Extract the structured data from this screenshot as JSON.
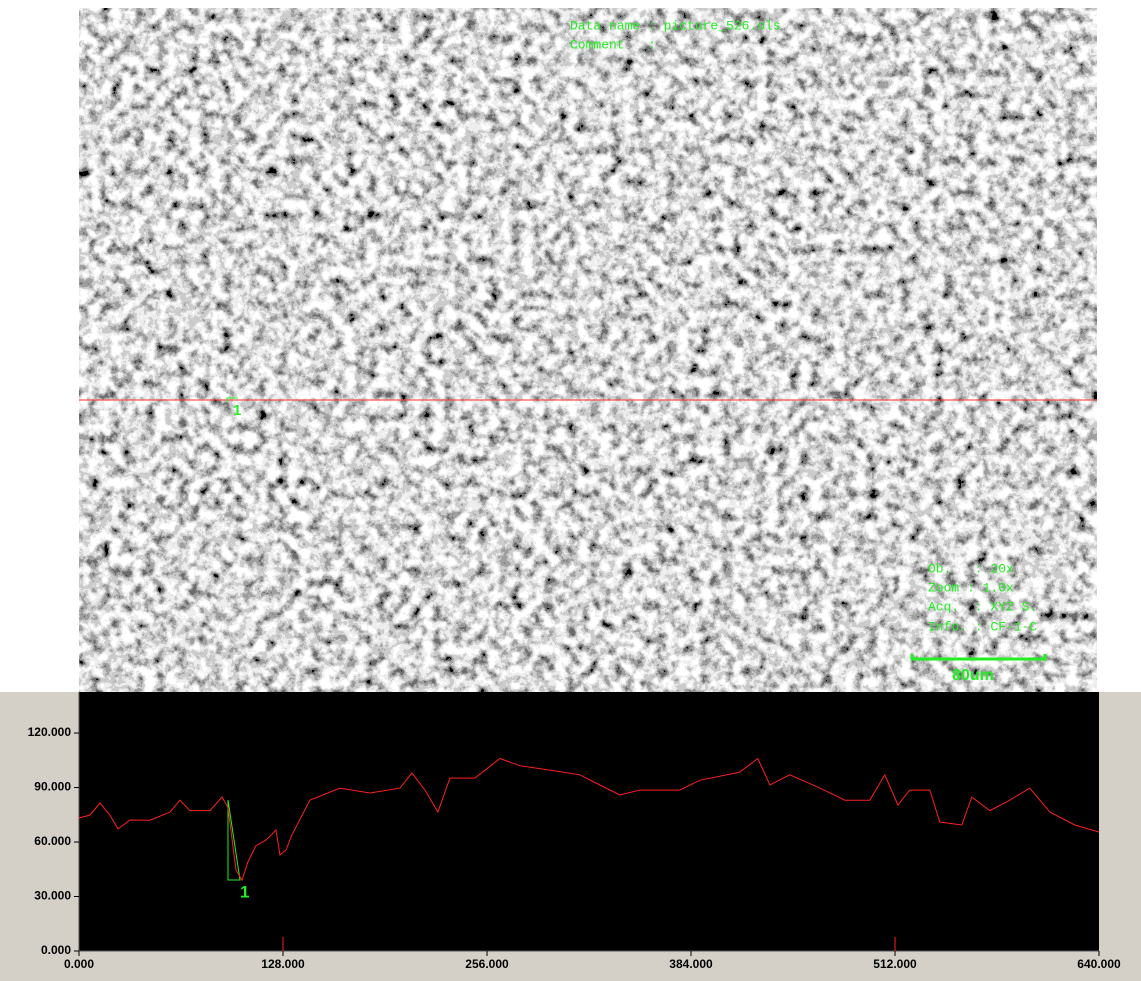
{
  "image": {
    "data_name": "Data name : picture_526.ols",
    "comment": "Comment   :",
    "ob": "Ob.   : 20x",
    "zoom": "Zoom : 1.0x",
    "acq": "Acq.  : XYZ S.",
    "info": "Info. : CF-1-C",
    "scale_bar": "80um",
    "marker": "1"
  },
  "chart_data": {
    "type": "line",
    "x": [
      0,
      6.9,
      13.2,
      19.4,
      24.5,
      32,
      44.5,
      57.1,
      63.4,
      69.6,
      82.2,
      89.7,
      93.5,
      98.5,
      102.3,
      106,
      111,
      117.3,
      123.6,
      126.1,
      129.9,
      133.6,
      144.9,
      163.7,
      182.6,
      201.4,
      208.9,
      217.1,
      225.2,
      232.7,
      248.4,
      264.1,
      276.6,
      295.4,
      314.2,
      326.8,
      339.3,
      351.9,
      377,
      389.5,
      414.6,
      425.9,
      433.5,
      446,
      464.9,
      480.6,
      496.2,
      505.6,
      513.8,
      521.3,
      533.9,
      540.1,
      553.9,
      560.2,
      571.5,
      584,
      596.6,
      609.1,
      624.8,
      640
    ],
    "series": [
      {
        "color": "#ff2020",
        "values": [
          73.2,
          74.9,
          81.5,
          74.9,
          67.2,
          72.1,
          72,
          76.5,
          83,
          77.3,
          77.3,
          84.8,
          79,
          44.6,
          39,
          49,
          58,
          61,
          66.6,
          52.8,
          55.6,
          63.9,
          83,
          89.7,
          87,
          89.7,
          98,
          88.6,
          76.5,
          95.2,
          95.2,
          106,
          102,
          99.6,
          97,
          91.4,
          85.9,
          88.6,
          88.6,
          94,
          98.5,
          106,
          91.4,
          97,
          89.7,
          83,
          83,
          97,
          80.4,
          88.6,
          88.6,
          71,
          69.4,
          84.8,
          77.3,
          83,
          89.7,
          76.5,
          69.4,
          65.5
        ]
      }
    ],
    "xlim": [
      0,
      640
    ],
    "ylim": [
      0,
      142.6
    ],
    "xticks": [
      {
        "value": 0,
        "label": "0.000"
      },
      {
        "value": 128,
        "label": "128.000"
      },
      {
        "value": 256,
        "label": "256.000"
      },
      {
        "value": 384,
        "label": "384.000"
      },
      {
        "value": 512,
        "label": "512.000"
      },
      {
        "value": 640,
        "label": "640.000"
      }
    ],
    "yticks": [
      {
        "value": 0,
        "label": "0.000"
      },
      {
        "value": 30,
        "label": "30.000"
      },
      {
        "value": 60,
        "label": "60.000"
      },
      {
        "value": 90,
        "label": "90.000"
      },
      {
        "value": 120,
        "label": "120.000"
      }
    ],
    "marker_label": "1"
  }
}
